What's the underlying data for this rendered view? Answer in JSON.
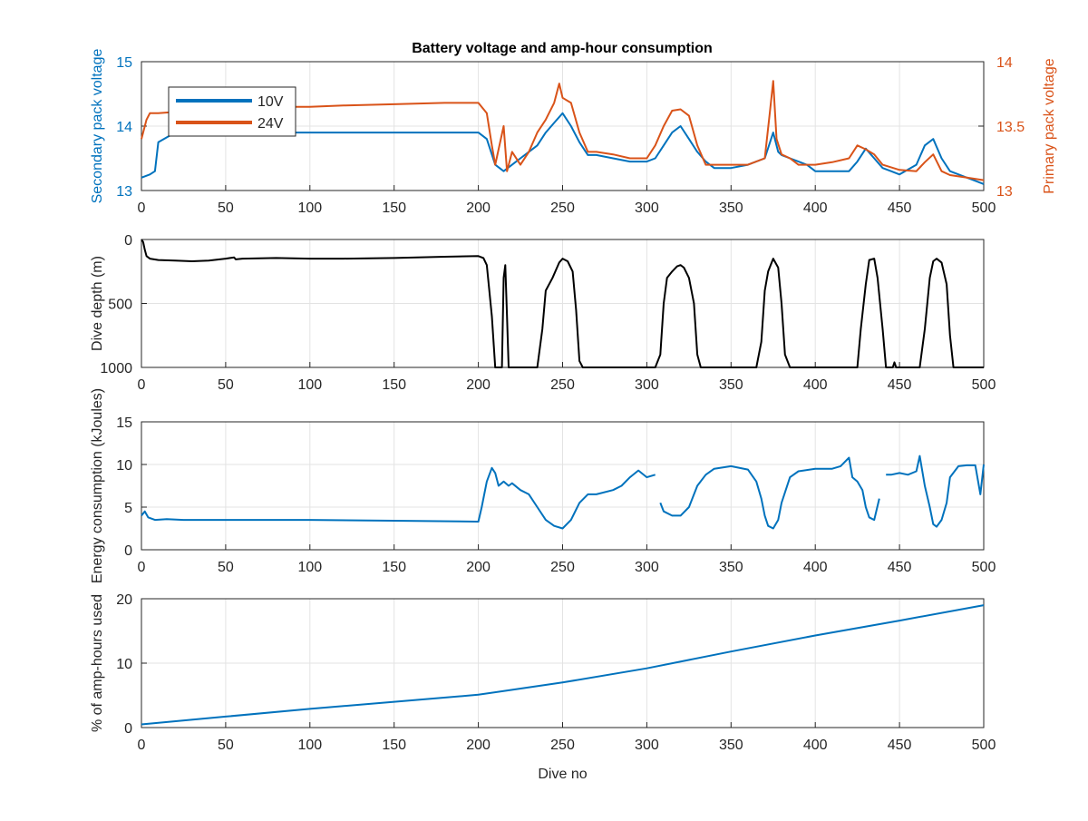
{
  "figure": {
    "title": "Battery voltage and amp-hour consumption",
    "colors": {
      "blue": "#0072BD",
      "orange": "#D95319",
      "black": "#000000",
      "grid": "#e3e3e3",
      "axis": "#262626"
    }
  },
  "chart_data": [
    {
      "type": "line",
      "title": "Battery voltage and amp-hour consumption",
      "xlabel": "",
      "ylabel": "Secondary pack voltage",
      "y2label": "Primary pack voltage",
      "xlim": [
        0,
        500
      ],
      "ylim": [
        13,
        15
      ],
      "y2lim": [
        13,
        14
      ],
      "xticks": [
        0,
        50,
        100,
        150,
        200,
        250,
        300,
        350,
        400,
        450,
        500
      ],
      "yticks": [
        13,
        14,
        15
      ],
      "y2ticks": [
        13,
        13.5,
        14
      ],
      "y2ticklabels": [
        "13",
        "13.5",
        "14"
      ],
      "grid": true,
      "legend": {
        "placement": "top-left",
        "entries": [
          "10V",
          "24V"
        ]
      },
      "series": [
        {
          "name": "10V",
          "axis": "left",
          "color": "#0072BD",
          "x": [
            0,
            5,
            8,
            10,
            20,
            40,
            60,
            80,
            100,
            120,
            140,
            160,
            180,
            200,
            205,
            210,
            215,
            220,
            225,
            230,
            235,
            240,
            245,
            250,
            255,
            260,
            265,
            270,
            280,
            290,
            300,
            305,
            310,
            315,
            320,
            325,
            330,
            335,
            340,
            350,
            360,
            370,
            375,
            378,
            380,
            385,
            390,
            395,
            400,
            410,
            420,
            425,
            430,
            435,
            440,
            445,
            450,
            460,
            465,
            470,
            475,
            480,
            490,
            495,
            500
          ],
          "y": [
            13.2,
            13.25,
            13.3,
            13.75,
            13.9,
            13.9,
            13.9,
            13.9,
            13.9,
            13.9,
            13.9,
            13.9,
            13.9,
            13.9,
            13.8,
            13.4,
            13.3,
            13.4,
            13.5,
            13.6,
            13.7,
            13.9,
            14.05,
            14.2,
            14.0,
            13.75,
            13.55,
            13.55,
            13.5,
            13.45,
            13.45,
            13.5,
            13.7,
            13.9,
            14.0,
            13.8,
            13.6,
            13.45,
            13.35,
            13.35,
            13.4,
            13.5,
            13.9,
            13.6,
            13.55,
            13.5,
            13.45,
            13.4,
            13.3,
            13.3,
            13.3,
            13.45,
            13.65,
            13.5,
            13.35,
            13.3,
            13.25,
            13.4,
            13.7,
            13.8,
            13.5,
            13.3,
            13.2,
            13.15,
            13.1
          ]
        },
        {
          "name": "24V",
          "axis": "right",
          "color": "#D95319",
          "x": [
            0,
            3,
            5,
            8,
            10,
            20,
            30,
            50,
            80,
            100,
            120,
            150,
            180,
            200,
            205,
            208,
            210,
            215,
            217,
            220,
            225,
            230,
            235,
            240,
            245,
            248,
            250,
            255,
            260,
            265,
            270,
            280,
            290,
            300,
            305,
            310,
            315,
            320,
            325,
            330,
            335,
            340,
            350,
            360,
            370,
            373,
            375,
            377,
            380,
            385,
            390,
            400,
            410,
            420,
            425,
            430,
            435,
            440,
            445,
            450,
            460,
            465,
            470,
            475,
            480,
            490,
            500
          ],
          "y": [
            13.4,
            13.55,
            13.6,
            13.6,
            13.6,
            13.61,
            13.63,
            13.64,
            13.65,
            13.65,
            13.66,
            13.67,
            13.68,
            13.68,
            13.6,
            13.35,
            13.2,
            13.5,
            13.15,
            13.3,
            13.2,
            13.3,
            13.45,
            13.55,
            13.68,
            13.83,
            13.72,
            13.68,
            13.45,
            13.3,
            13.3,
            13.28,
            13.25,
            13.25,
            13.35,
            13.5,
            13.62,
            13.63,
            13.58,
            13.35,
            13.2,
            13.2,
            13.2,
            13.2,
            13.25,
            13.6,
            13.85,
            13.4,
            13.28,
            13.25,
            13.2,
            13.2,
            13.22,
            13.25,
            13.35,
            13.32,
            13.28,
            13.2,
            13.18,
            13.16,
            13.15,
            13.22,
            13.28,
            13.15,
            13.12,
            13.1,
            13.08
          ]
        }
      ]
    },
    {
      "type": "line",
      "xlabel": "",
      "ylabel": "Dive depth (m)",
      "xlim": [
        0,
        500
      ],
      "ylim": [
        0,
        1000
      ],
      "yreverse": true,
      "xticks": [
        0,
        50,
        100,
        150,
        200,
        250,
        300,
        350,
        400,
        450,
        500
      ],
      "yticks": [
        0,
        500,
        1000
      ],
      "grid": true,
      "series": [
        {
          "color": "#000000",
          "x": [
            0,
            1,
            2,
            3,
            5,
            10,
            20,
            30,
            40,
            50,
            55,
            56,
            60,
            80,
            100,
            120,
            150,
            180,
            200,
            203,
            205,
            208,
            210,
            212,
            214,
            215,
            216,
            217,
            218,
            220,
            230,
            235,
            238,
            240,
            244,
            248,
            250,
            253,
            256,
            258,
            260,
            262,
            280,
            300,
            305,
            308,
            310,
            312,
            315,
            318,
            320,
            322,
            325,
            328,
            330,
            332,
            340,
            350,
            360,
            365,
            368,
            370,
            372,
            375,
            378,
            380,
            382,
            385,
            400,
            420,
            425,
            427,
            430,
            432,
            435,
            437,
            440,
            442,
            446,
            447,
            448,
            450,
            460,
            462,
            465,
            468,
            470,
            472,
            475,
            478,
            480,
            482,
            490,
            500
          ],
          "y": [
            0,
            20,
            80,
            130,
            150,
            160,
            165,
            170,
            165,
            150,
            140,
            155,
            150,
            145,
            150,
            150,
            145,
            135,
            130,
            145,
            200,
            600,
            1000,
            1000,
            1000,
            300,
            200,
            600,
            1000,
            1000,
            1000,
            1000,
            700,
            400,
            300,
            180,
            150,
            170,
            250,
            550,
            950,
            1000,
            1000,
            1000,
            1000,
            900,
            500,
            300,
            250,
            210,
            200,
            220,
            300,
            500,
            900,
            1000,
            1000,
            1000,
            1000,
            1000,
            800,
            400,
            250,
            150,
            220,
            500,
            900,
            1000,
            1000,
            1000,
            1000,
            700,
            350,
            160,
            150,
            300,
            700,
            1000,
            1000,
            960,
            1000,
            1000,
            1000,
            1000,
            700,
            300,
            170,
            150,
            180,
            350,
            750,
            1000,
            1000,
            1000
          ]
        }
      ]
    },
    {
      "type": "line",
      "xlabel": "",
      "ylabel": "Energy consumption (kJoules)",
      "xlim": [
        0,
        500
      ],
      "ylim": [
        0,
        15
      ],
      "xticks": [
        0,
        50,
        100,
        150,
        200,
        250,
        300,
        350,
        400,
        450,
        500
      ],
      "yticks": [
        0,
        5,
        10,
        15
      ],
      "grid": true,
      "series": [
        {
          "color": "#0072BD",
          "segments": [
            {
              "x": [
                0,
                2,
                4,
                8,
                15,
                25,
                50,
                100,
                150,
                200,
                202,
                205,
                208,
                210,
                212,
                215,
                218,
                220,
                225,
                230,
                235,
                240,
                245,
                250,
                255,
                260,
                265,
                270,
                280,
                285,
                290,
                295,
                300,
                305
              ],
              "y": [
                4.0,
                4.5,
                3.8,
                3.5,
                3.6,
                3.5,
                3.5,
                3.5,
                3.4,
                3.3,
                5.0,
                8.0,
                9.6,
                9.0,
                7.5,
                8.0,
                7.5,
                7.8,
                7.0,
                6.5,
                5.0,
                3.5,
                2.8,
                2.5,
                3.5,
                5.5,
                6.5,
                6.5,
                7.0,
                7.5,
                8.5,
                9.3,
                8.5,
                8.8
              ]
            },
            {
              "x": [
                308,
                310,
                315,
                320,
                325,
                330,
                335,
                340,
                350,
                360,
                365,
                368,
                370,
                372,
                375,
                378,
                380,
                385,
                390,
                400,
                410,
                415,
                420,
                422,
                425,
                428,
                430,
                432,
                435,
                438
              ],
              "y": [
                5.5,
                4.5,
                4.0,
                4.0,
                5.0,
                7.5,
                8.8,
                9.5,
                9.8,
                9.4,
                8.0,
                6.0,
                4.0,
                2.8,
                2.5,
                3.5,
                5.5,
                8.5,
                9.2,
                9.5,
                9.5,
                9.8,
                10.8,
                8.5,
                8.0,
                7.0,
                5.0,
                3.8,
                3.5,
                6.0
              ]
            },
            {
              "x": [
                442,
                445,
                450,
                455,
                460,
                462,
                465,
                468,
                470,
                472,
                475,
                478,
                480,
                485,
                490,
                495,
                498,
                500
              ],
              "y": [
                8.8,
                8.8,
                9.0,
                8.8,
                9.2,
                11.0,
                7.5,
                5.0,
                3.0,
                2.7,
                3.5,
                5.5,
                8.5,
                9.8,
                9.9,
                9.9,
                6.5,
                10.0
              ]
            }
          ]
        }
      ]
    },
    {
      "type": "line",
      "xlabel": "Dive no",
      "ylabel": "% of amp-hours used",
      "xlim": [
        0,
        500
      ],
      "ylim": [
        0,
        20
      ],
      "xticks": [
        0,
        50,
        100,
        150,
        200,
        250,
        300,
        350,
        400,
        450,
        500
      ],
      "yticks": [
        0,
        10,
        20
      ],
      "grid": true,
      "series": [
        {
          "color": "#0072BD",
          "x": [
            0,
            50,
            100,
            150,
            200,
            250,
            300,
            350,
            400,
            450,
            500
          ],
          "y": [
            0.5,
            1.7,
            2.9,
            4.0,
            5.1,
            7.0,
            9.2,
            11.8,
            14.3,
            16.6,
            19.0
          ]
        }
      ]
    }
  ]
}
